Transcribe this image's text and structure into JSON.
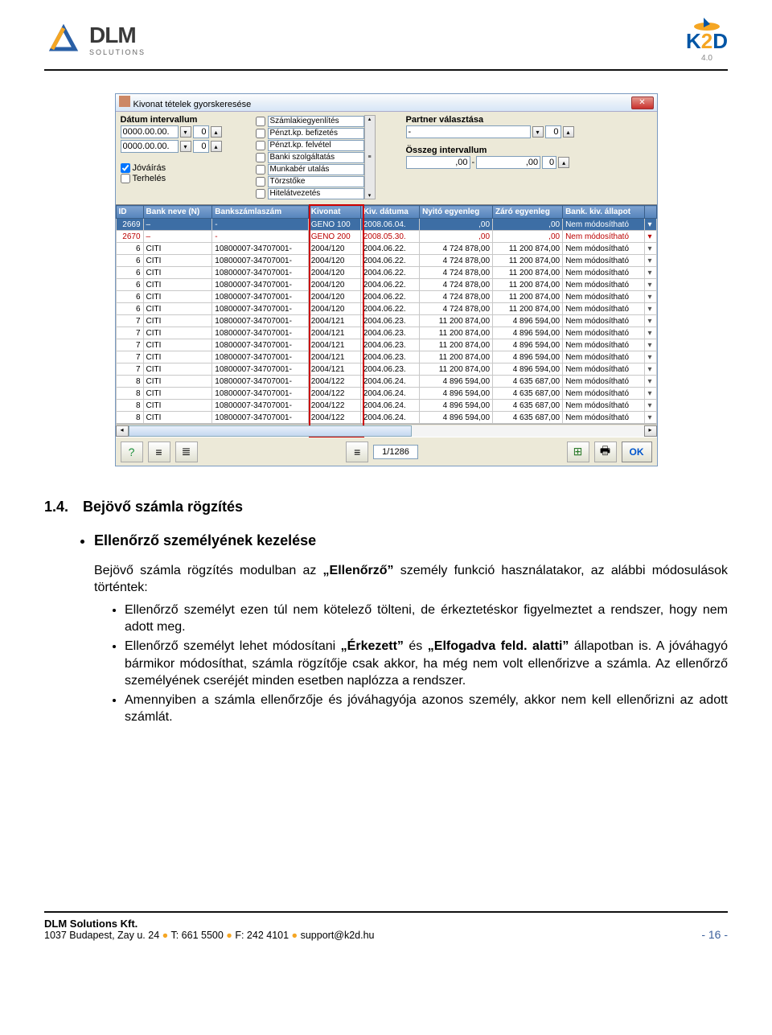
{
  "header": {
    "logo_main": "DLM",
    "logo_sub": "SOLUTIONS",
    "k2d_ver": "4.0"
  },
  "app": {
    "title": "Kivonat tételek gyorskeresése",
    "filters": {
      "date_label": "Dátum intervallum",
      "date_from": "0000.00.00.",
      "date_to": "0000.00.00.",
      "spin_val": "0",
      "chk_jovairas": "Jóváírás",
      "chk_terheles": "Terhelés",
      "type_list": [
        "Számlakiegyenlítés",
        "Pénzt.kp. befizetés",
        "Pénzt.kp. felvétel",
        "Banki szolgáltatás",
        "Munkabér utalás",
        "Törzstőke",
        "Hitelátvezetés"
      ],
      "partner_label": "Partner választása",
      "partner_val": "-",
      "osszeg_label": "Összeg intervallum",
      "osszeg_from": ",00",
      "osszeg_dash": "-",
      "osszeg_to": ",00"
    },
    "grid": {
      "columns": [
        "ID",
        "Bank neve (N)",
        "Bankszámlaszám",
        "Kivonat",
        "Kiv. dátuma",
        "Nyitó egyenleg",
        "Záró egyenleg",
        "Bank. kiv. állapot",
        ""
      ],
      "rows": [
        {
          "sel": true,
          "id": "2669",
          "bank": "–",
          "acct": "-",
          "kiv": "GENO 100",
          "date": "2008.06.04.",
          "ny": ",00",
          "zar": ",00",
          "st": "Nem módosítható"
        },
        {
          "cls": "r2670",
          "id": "2670",
          "bank": "–",
          "acct": "-",
          "kiv": "GENO 200",
          "date": "2008.05.30.",
          "ny": ",00",
          "zar": ",00",
          "st": "Nem módosítható"
        },
        {
          "id": "6",
          "bank": "CITI",
          "acct": "10800007-34707001-",
          "kiv": "2004/120",
          "date": "2004.06.22.",
          "ny": "4 724 878,00",
          "zar": "11 200 874,00",
          "st": "Nem módosítható"
        },
        {
          "id": "6",
          "bank": "CITI",
          "acct": "10800007-34707001-",
          "kiv": "2004/120",
          "date": "2004.06.22.",
          "ny": "4 724 878,00",
          "zar": "11 200 874,00",
          "st": "Nem módosítható"
        },
        {
          "id": "6",
          "bank": "CITI",
          "acct": "10800007-34707001-",
          "kiv": "2004/120",
          "date": "2004.06.22.",
          "ny": "4 724 878,00",
          "zar": "11 200 874,00",
          "st": "Nem módosítható"
        },
        {
          "id": "6",
          "bank": "CITI",
          "acct": "10800007-34707001-",
          "kiv": "2004/120",
          "date": "2004.06.22.",
          "ny": "4 724 878,00",
          "zar": "11 200 874,00",
          "st": "Nem módosítható"
        },
        {
          "id": "6",
          "bank": "CITI",
          "acct": "10800007-34707001-",
          "kiv": "2004/120",
          "date": "2004.06.22.",
          "ny": "4 724 878,00",
          "zar": "11 200 874,00",
          "st": "Nem módosítható"
        },
        {
          "id": "6",
          "bank": "CITI",
          "acct": "10800007-34707001-",
          "kiv": "2004/120",
          "date": "2004.06.22.",
          "ny": "4 724 878,00",
          "zar": "11 200 874,00",
          "st": "Nem módosítható"
        },
        {
          "id": "7",
          "bank": "CITI",
          "acct": "10800007-34707001-",
          "kiv": "2004/121",
          "date": "2004.06.23.",
          "ny": "11 200 874,00",
          "zar": "4 896 594,00",
          "st": "Nem módosítható"
        },
        {
          "id": "7",
          "bank": "CITI",
          "acct": "10800007-34707001-",
          "kiv": "2004/121",
          "date": "2004.06.23.",
          "ny": "11 200 874,00",
          "zar": "4 896 594,00",
          "st": "Nem módosítható"
        },
        {
          "id": "7",
          "bank": "CITI",
          "acct": "10800007-34707001-",
          "kiv": "2004/121",
          "date": "2004.06.23.",
          "ny": "11 200 874,00",
          "zar": "4 896 594,00",
          "st": "Nem módosítható"
        },
        {
          "id": "7",
          "bank": "CITI",
          "acct": "10800007-34707001-",
          "kiv": "2004/121",
          "date": "2004.06.23.",
          "ny": "11 200 874,00",
          "zar": "4 896 594,00",
          "st": "Nem módosítható"
        },
        {
          "id": "7",
          "bank": "CITI",
          "acct": "10800007-34707001-",
          "kiv": "2004/121",
          "date": "2004.06.23.",
          "ny": "11 200 874,00",
          "zar": "4 896 594,00",
          "st": "Nem módosítható"
        },
        {
          "id": "8",
          "bank": "CITI",
          "acct": "10800007-34707001-",
          "kiv": "2004/122",
          "date": "2004.06.24.",
          "ny": "4 896 594,00",
          "zar": "4 635 687,00",
          "st": "Nem módosítható"
        },
        {
          "id": "8",
          "bank": "CITI",
          "acct": "10800007-34707001-",
          "kiv": "2004/122",
          "date": "2004.06.24.",
          "ny": "4 896 594,00",
          "zar": "4 635 687,00",
          "st": "Nem módosítható"
        },
        {
          "id": "8",
          "bank": "CITI",
          "acct": "10800007-34707001-",
          "kiv": "2004/122",
          "date": "2004.06.24.",
          "ny": "4 896 594,00",
          "zar": "4 635 687,00",
          "st": "Nem módosítható"
        },
        {
          "id": "8",
          "bank": "CITI",
          "acct": "10800007-34707001-",
          "kiv": "2004/122",
          "date": "2004.06.24.",
          "ny": "4 896 594,00",
          "zar": "4 635 687,00",
          "st": "Nem módosítható"
        }
      ]
    },
    "counter": "1/1286",
    "ok": "OK"
  },
  "doc": {
    "h2_num": "1.4.",
    "h2_title": "Bejövő számla rögzítés",
    "sub1": "Ellenőrző személyének kezelése",
    "para1_a": "Bejövő számla rögzítés modulban az ",
    "para1_b": "„Ellenőrző”",
    "para1_c": " személy funkció használatakor, az alábbi módosulások történtek:",
    "b1": "Ellenőrző személyt ezen túl nem kötelező tölteni, de érkeztetéskor figyelmeztet a rendszer, hogy nem adott meg.",
    "b2_a": "Ellenőrző személyt lehet módosítani ",
    "b2_b": "„Érkezett”",
    "b2_c": " és ",
    "b2_d": "„Elfogadva feld. alatti”",
    "b2_e": " állapotban is. A jóváhagyó bármikor módosíthat, számla rögzítője csak akkor, ha még nem volt ellenőrizve a számla. Az ellenőrző személyének cseréjét minden esetben naplózza a rendszer.",
    "b3": "Amennyiben a számla ellenőrzője és jóváhagyója azonos személy, akkor nem kell ellenőrizni az adott számlát."
  },
  "footer": {
    "company": "DLM Solutions Kft.",
    "addr": "1037 Budapest, Zay u. 24",
    "tel": "T: 661 5500",
    "fax": "F: 242 4101",
    "email": "support@k2d.hu",
    "page": "- 16 -"
  }
}
